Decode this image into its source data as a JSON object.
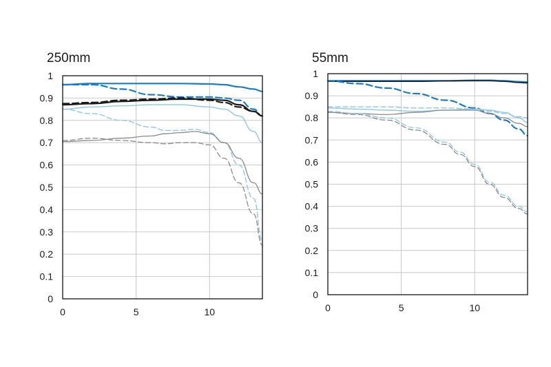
{
  "colors": {
    "blue": "#1a7cc4",
    "light_blue": "#8ec6e6",
    "black": "#1a1a1a",
    "gray": "#8a8a8a"
  },
  "chart_data": [
    {
      "type": "line",
      "title": "250mm",
      "xlim": [
        0,
        13.6
      ],
      "ylim": [
        0,
        1
      ],
      "xticks": [
        "0",
        "5",
        "10"
      ],
      "yticks": [
        "0",
        "0.1",
        "0.2",
        "0.3",
        "0.4",
        "0.5",
        "0.6",
        "0.7",
        "0.8",
        "0.9",
        "1"
      ],
      "grid": true,
      "series": [
        {
          "color": "blue",
          "dash": false,
          "width": 2.2,
          "x": [
            0,
            2,
            4,
            6,
            8,
            10,
            11,
            12,
            13,
            13.6
          ],
          "y": [
            0.96,
            0.965,
            0.965,
            0.965,
            0.965,
            0.963,
            0.96,
            0.95,
            0.94,
            0.93
          ]
        },
        {
          "color": "blue",
          "dash": true,
          "width": 2.2,
          "x": [
            0,
            2,
            4,
            6,
            8,
            10,
            11,
            12,
            13,
            13.6
          ],
          "y": [
            0.96,
            0.96,
            0.94,
            0.915,
            0.905,
            0.905,
            0.9,
            0.89,
            0.85,
            0.82
          ]
        },
        {
          "color": "black",
          "dash": false,
          "width": 2.2,
          "x": [
            0,
            2,
            4,
            6,
            8,
            10,
            11,
            12,
            13,
            13.6
          ],
          "y": [
            0.87,
            0.875,
            0.885,
            0.89,
            0.895,
            0.895,
            0.89,
            0.87,
            0.84,
            0.82
          ]
        },
        {
          "color": "black",
          "dash": true,
          "width": 2.2,
          "x": [
            0,
            2,
            4,
            6,
            8,
            10,
            11,
            12,
            13,
            13.6
          ],
          "y": [
            0.875,
            0.88,
            0.89,
            0.895,
            0.9,
            0.89,
            0.88,
            0.86,
            0.84,
            0.82
          ]
        },
        {
          "color": "light_blue",
          "dash": false,
          "width": 1.4,
          "x": [
            0,
            2,
            4,
            6,
            8,
            10,
            11,
            12,
            13,
            13.6
          ],
          "y": [
            0.85,
            0.86,
            0.865,
            0.87,
            0.87,
            0.86,
            0.85,
            0.82,
            0.75,
            0.7
          ]
        },
        {
          "color": "light_blue",
          "dash": true,
          "width": 1.4,
          "x": [
            0,
            2,
            4,
            6,
            7,
            8,
            9,
            10,
            11,
            12,
            13,
            13.6
          ],
          "y": [
            0.85,
            0.83,
            0.8,
            0.77,
            0.755,
            0.755,
            0.76,
            0.745,
            0.7,
            0.6,
            0.45,
            0.26
          ]
        },
        {
          "color": "gray",
          "dash": false,
          "width": 1.3,
          "x": [
            0,
            2,
            4,
            6,
            7,
            8,
            9,
            10,
            11,
            12,
            13,
            13.6
          ],
          "y": [
            0.705,
            0.71,
            0.72,
            0.73,
            0.74,
            0.745,
            0.75,
            0.74,
            0.7,
            0.63,
            0.52,
            0.47
          ]
        },
        {
          "color": "gray",
          "dash": true,
          "width": 1.3,
          "x": [
            0,
            2,
            4,
            6,
            7,
            8,
            9,
            10,
            11,
            12,
            13,
            13.6
          ],
          "y": [
            0.71,
            0.72,
            0.71,
            0.7,
            0.695,
            0.7,
            0.7,
            0.69,
            0.63,
            0.52,
            0.38,
            0.24
          ]
        }
      ]
    },
    {
      "type": "line",
      "title": "55mm",
      "xlim": [
        0,
        13.6
      ],
      "ylim": [
        0,
        1
      ],
      "xticks": [
        "0",
        "5",
        "10"
      ],
      "yticks": [
        "0",
        "0.1",
        "0.2",
        "0.3",
        "0.4",
        "0.5",
        "0.6",
        "0.7",
        "0.8",
        "0.9",
        "1"
      ],
      "grid": true,
      "series": [
        {
          "color": "blue",
          "dash": false,
          "width": 2.2,
          "x": [
            0,
            2,
            4,
            6,
            8,
            10,
            11,
            12,
            13,
            13.6
          ],
          "y": [
            0.968,
            0.968,
            0.968,
            0.968,
            0.968,
            0.97,
            0.97,
            0.968,
            0.964,
            0.962
          ]
        },
        {
          "color": "black",
          "dash": false,
          "width": 1.6,
          "x": [
            0,
            2,
            4,
            6,
            8,
            10,
            11,
            12,
            13,
            13.6
          ],
          "y": [
            0.965,
            0.965,
            0.965,
            0.965,
            0.967,
            0.968,
            0.968,
            0.965,
            0.96,
            0.958
          ]
        },
        {
          "color": "blue",
          "dash": true,
          "width": 2.2,
          "x": [
            0,
            2,
            4,
            6,
            8,
            10,
            11,
            12,
            13,
            13.6
          ],
          "y": [
            0.968,
            0.955,
            0.935,
            0.91,
            0.88,
            0.845,
            0.82,
            0.79,
            0.75,
            0.72
          ]
        },
        {
          "color": "light_blue",
          "dash": false,
          "width": 1.4,
          "x": [
            0,
            2,
            4,
            6,
            8,
            10,
            11,
            12,
            13,
            13.6
          ],
          "y": [
            0.845,
            0.84,
            0.835,
            0.83,
            0.835,
            0.84,
            0.835,
            0.825,
            0.8,
            0.78
          ]
        },
        {
          "color": "light_blue",
          "dash": true,
          "width": 1.4,
          "x": [
            0,
            2,
            4,
            6,
            8,
            10,
            11,
            12,
            13,
            13.6
          ],
          "y": [
            0.85,
            0.85,
            0.85,
            0.845,
            0.845,
            0.84,
            0.83,
            0.82,
            0.805,
            0.8
          ]
        },
        {
          "color": "gray",
          "dash": false,
          "width": 1.3,
          "x": [
            0,
            2,
            4,
            6,
            8,
            10,
            11,
            12,
            13,
            13.6
          ],
          "y": [
            0.825,
            0.82,
            0.815,
            0.825,
            0.835,
            0.835,
            0.82,
            0.8,
            0.775,
            0.76
          ]
        },
        {
          "color": "gray",
          "dash": true,
          "width": 1.3,
          "x": [
            0,
            2,
            4,
            6,
            8,
            9,
            10,
            11,
            12,
            13,
            13.6
          ],
          "y": [
            0.825,
            0.815,
            0.79,
            0.745,
            0.68,
            0.635,
            0.58,
            0.5,
            0.44,
            0.39,
            0.365
          ]
        },
        {
          "color": "light_blue",
          "dash": true,
          "width": 1.3,
          "x": [
            0,
            2,
            4,
            6,
            8,
            9,
            10,
            11,
            12,
            13,
            13.6
          ],
          "y": [
            0.83,
            0.82,
            0.8,
            0.755,
            0.69,
            0.645,
            0.59,
            0.51,
            0.45,
            0.4,
            0.375
          ]
        }
      ]
    }
  ]
}
